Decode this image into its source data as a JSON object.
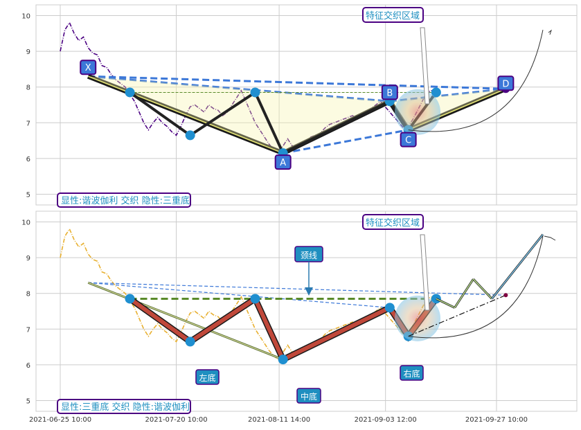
{
  "chart_data": [
    {
      "type": "line",
      "title": "",
      "ylim": [
        4.7,
        10.3
      ],
      "yticks": [
        5,
        6,
        7,
        8,
        9,
        10
      ],
      "grid": true,
      "price_color": "#4b0082",
      "price_style": "dashdot",
      "price_series": {
        "x": [
          "2021-06-25",
          "2021-06-26",
          "2021-06-27",
          "2021-06-28",
          "2021-06-29",
          "2021-06-30",
          "2021-07-01",
          "2021-07-02",
          "2021-07-03",
          "2021-07-04",
          "2021-07-05",
          "2021-07-06",
          "2021-07-07",
          "2021-07-08",
          "2021-07-09",
          "2021-07-10",
          "2021-07-11",
          "2021-07-12",
          "2021-07-13",
          "2021-07-14",
          "2021-07-15",
          "2021-07-16",
          "2021-07-17",
          "2021-07-18",
          "2021-07-19",
          "2021-07-20",
          "2021-07-21",
          "2021-07-22",
          "2021-07-23",
          "2021-07-24",
          "2021-07-25",
          "2021-07-26",
          "2021-07-27",
          "2021-07-28",
          "2021-07-29",
          "2021-07-30",
          "2021-07-31",
          "2021-08-01",
          "2021-08-02",
          "2021-08-03",
          "2021-08-04",
          "2021-08-05",
          "2021-08-06",
          "2021-08-07",
          "2021-08-08",
          "2021-08-09",
          "2021-08-10",
          "2021-08-11",
          "2021-08-12",
          "2021-08-13",
          "2021-08-14",
          "2021-08-15",
          "2021-08-16",
          "2021-08-17",
          "2021-08-18",
          "2021-08-19",
          "2021-08-20",
          "2021-08-21",
          "2021-08-22",
          "2021-08-23",
          "2021-08-24",
          "2021-08-25",
          "2021-08-26",
          "2021-08-27",
          "2021-08-28",
          "2021-08-29",
          "2021-08-30",
          "2021-08-31",
          "2021-09-01",
          "2021-09-02",
          "2021-09-03",
          "2021-09-04",
          "2021-09-05",
          "2021-09-06",
          "2021-09-07",
          "2021-09-08",
          "2021-09-09",
          "2021-09-10",
          "2021-09-11",
          "2021-09-12",
          "2021-09-13",
          "2021-09-14"
        ],
        "y": [
          9.0,
          9.6,
          9.8,
          9.5,
          9.3,
          9.4,
          9.1,
          8.95,
          8.9,
          8.6,
          8.55,
          8.35,
          8.2,
          8.1,
          8.0,
          7.8,
          7.6,
          7.3,
          7.0,
          6.8,
          7.0,
          7.15,
          7.0,
          6.9,
          6.75,
          6.65,
          6.9,
          7.2,
          7.45,
          7.5,
          7.4,
          7.3,
          7.5,
          7.4,
          7.35,
          7.2,
          7.3,
          7.5,
          7.7,
          7.9,
          7.6,
          7.3,
          7.0,
          6.8,
          6.6,
          6.4,
          6.25,
          6.15,
          6.35,
          6.55,
          6.35,
          6.3,
          6.4,
          6.5,
          6.6,
          6.65,
          6.7,
          6.85,
          6.95,
          7.0,
          7.05,
          7.1,
          7.15,
          7.2,
          7.1,
          7.2,
          7.3,
          7.4,
          7.5,
          7.6,
          7.45,
          7.3,
          7.15,
          7.0,
          6.85,
          6.9,
          7.1,
          7.35,
          7.6,
          7.85,
          7.9,
          7.8
        ]
      },
      "date_ticks": [
        "2021-06-25 10:00",
        "2021-07-20 10:00",
        "2021-08-11 14:00",
        "2021-09-03 12:00",
        "2021-09-27 10:00"
      ],
      "harmonic": {
        "points": [
          {
            "label": "X",
            "date": "2021-07-01",
            "value": 8.3
          },
          {
            "label": "A",
            "date": "2021-08-12",
            "value": 6.15
          },
          {
            "label": "B",
            "date": "2021-09-04",
            "value": 7.6
          },
          {
            "label": "C",
            "date": "2021-09-08",
            "value": 6.8
          },
          {
            "label": "D",
            "date": "2021-09-29",
            "value": 7.95
          }
        ]
      },
      "triple_bottom": [
        {
          "date": "2021-07-10",
          "value": 7.85
        },
        {
          "date": "2021-07-23",
          "value": 6.65
        },
        {
          "date": "2021-08-06",
          "value": 7.85
        },
        {
          "date": "2021-08-12",
          "value": 6.15
        },
        {
          "date": "2021-09-04",
          "value": 7.6
        },
        {
          "date": "2021-09-08",
          "value": 6.8
        },
        {
          "date": "2021-09-14",
          "value": 7.85
        }
      ],
      "neckline": 7.85,
      "end_dot": {
        "date": "2021-09-29",
        "value": 7.95
      },
      "zone_label": "特征交织区域",
      "footer_label": "显性:谐波伽利 交织 隐性:三重底"
    },
    {
      "type": "line",
      "title": "",
      "ylim": [
        4.7,
        10.3
      ],
      "yticks": [
        5,
        6,
        7,
        8,
        9,
        10
      ],
      "grid": true,
      "price_color": "#e8b030",
      "price_style": "dashdot",
      "date_ticks": [
        "2021-06-25 10:00",
        "2021-07-20 10:00",
        "2021-08-11 14:00",
        "2021-09-03 12:00",
        "2021-09-27 10:00"
      ],
      "labels": {
        "left": "左底",
        "middle": "中底",
        "right": "右底",
        "neck": "颈线"
      },
      "projection_zigzag": [
        {
          "date": "2021-09-14",
          "value": 7.85
        },
        {
          "date": "2021-09-18",
          "value": 7.6
        },
        {
          "date": "2021-09-22",
          "value": 8.4
        },
        {
          "date": "2021-09-26",
          "value": 7.85
        },
        {
          "date": "2021-10-07",
          "value": 9.65
        }
      ],
      "zone_label": "特征交织区域",
      "footer_label": "显性:三重底 交织 隐性:谐波伽利"
    }
  ]
}
